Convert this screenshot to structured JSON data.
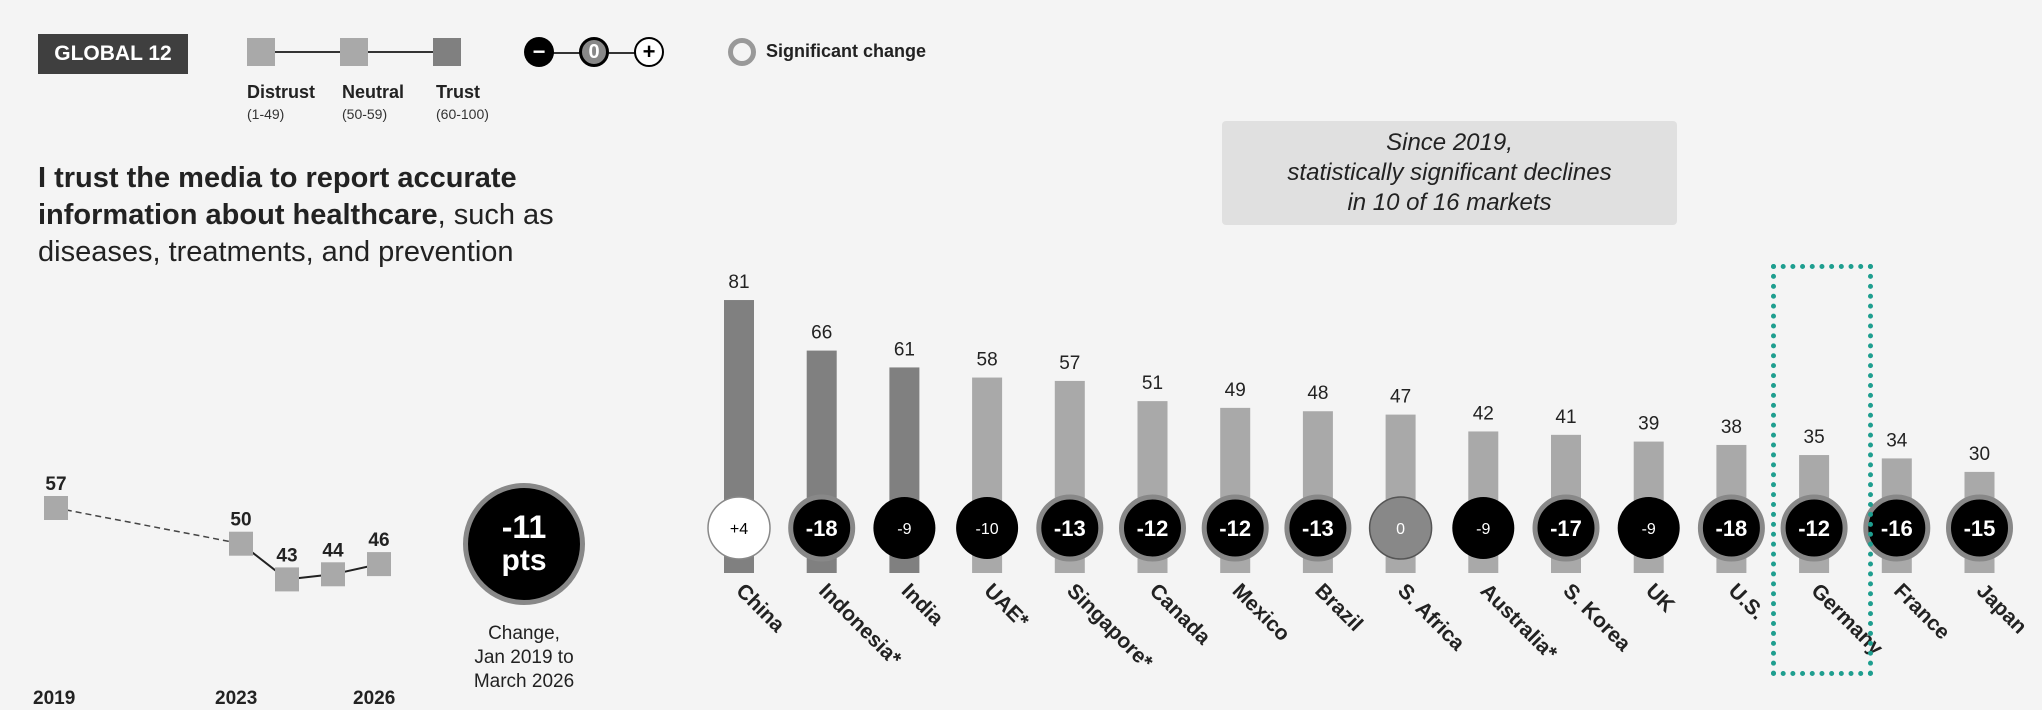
{
  "badge": "GLOBAL 12",
  "legend": {
    "items": [
      {
        "name": "Distrust",
        "range": "(1-49)",
        "color": "#a9a9a9"
      },
      {
        "name": "Neutral",
        "range": "(50-59)",
        "color": "#a9a9a9"
      },
      {
        "name": "Trust",
        "range": "(60-100)",
        "color": "#808080"
      }
    ],
    "change_symbols": [
      "−",
      "0",
      "+"
    ],
    "significant_label": "Significant change"
  },
  "question": {
    "bold": "I trust the media to report accurate information about healthcare",
    "rest": ", such as diseases, treatments, and prevention"
  },
  "callout": {
    "line1": "Since 2019,",
    "line2": "statistically significant declines",
    "line3": "in 10 of 16 markets"
  },
  "change_summary": {
    "value": "-11",
    "unit": "pts",
    "caption1": "Change,",
    "caption2": "Jan 2019 to",
    "caption3": "March 2026"
  },
  "colors": {
    "trust": "#808080",
    "neutral": "#a9a9a9",
    "distrust": "#a9a9a9",
    "highlight": "#1e9e8f"
  },
  "chart_data": [
    {
      "type": "line",
      "title": "",
      "points": [
        {
          "x": 2019,
          "y": 57
        },
        {
          "x": 2023,
          "y": 50
        },
        {
          "x": 2024,
          "y": 43
        },
        {
          "x": 2025,
          "y": 44
        },
        {
          "x": 2026,
          "y": 46
        }
      ],
      "year_labels": [
        "2019",
        "2023",
        "2026"
      ]
    },
    {
      "type": "bar",
      "title": "",
      "categories": [
        "China",
        "Indonesia*",
        "India",
        "UAE*",
        "Singapore*",
        "Canada",
        "Mexico",
        "Brazil",
        "S. Africa",
        "Australia*",
        "S. Korea",
        "UK",
        "U.S.",
        "Germany",
        "France",
        "Japan"
      ],
      "values": [
        81,
        66,
        61,
        58,
        57,
        51,
        49,
        48,
        47,
        42,
        41,
        39,
        38,
        35,
        34,
        30
      ],
      "changes": [
        "+4",
        "-18",
        "-9",
        "-10",
        "-13",
        "-12",
        "-12",
        "-13",
        "0",
        "-9",
        "-17",
        "-9",
        "-18",
        "-12",
        "-16",
        "-15"
      ],
      "significant": [
        false,
        true,
        false,
        false,
        true,
        true,
        true,
        true,
        false,
        false,
        true,
        false,
        true,
        true,
        true,
        true
      ],
      "highlighted": "Germany"
    }
  ]
}
